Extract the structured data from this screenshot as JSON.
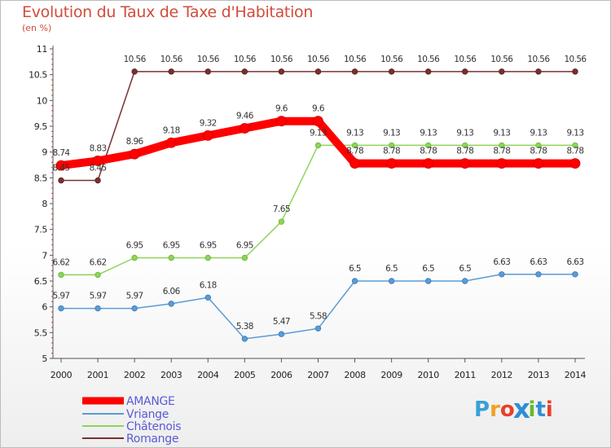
{
  "header": {
    "title": "Evolution du Taux de Taxe d'Habitation",
    "subtitle": "(en %)"
  },
  "logo": {
    "text": "Proxiti",
    "letter_colors": [
      "#3aa0d8",
      "#f0a020",
      "#e8402a",
      "#2f8fd6",
      "#68b830",
      "#2f8fd6",
      "#e8402a"
    ]
  },
  "chart_data": {
    "type": "line",
    "x": [
      2000,
      2001,
      2002,
      2003,
      2004,
      2005,
      2006,
      2007,
      2008,
      2009,
      2010,
      2011,
      2012,
      2013,
      2014
    ],
    "ylim": [
      5,
      11
    ],
    "yticks": [
      "5",
      "5.5",
      "6",
      "6.5",
      "7",
      "7.5",
      "8",
      "8.5",
      "9",
      "9.5",
      "10",
      "10.5",
      "11"
    ],
    "grid": false,
    "legend_position": "bottom-left",
    "series": [
      {
        "name": "AMANGE",
        "color": "#ff0000",
        "values": [
          8.74,
          8.83,
          8.96,
          9.18,
          9.32,
          9.46,
          9.6,
          9.6,
          8.78,
          8.78,
          8.78,
          8.78,
          8.78,
          8.78,
          8.78
        ],
        "labels": [
          "8.74",
          "8.83",
          "8.96",
          "9.18",
          "9.32",
          "9.46",
          "9.6",
          "9.6",
          "8.78",
          "8.78",
          "8.78",
          "8.78",
          "8.78",
          "8.78",
          "8.78"
        ]
      },
      {
        "name": "Vriange",
        "color": "#5b9bd5",
        "values": [
          5.97,
          5.97,
          5.97,
          6.06,
          6.18,
          5.38,
          5.47,
          5.58,
          6.5,
          6.5,
          6.5,
          6.5,
          6.63,
          6.63,
          6.63
        ],
        "labels": [
          "5.97",
          "5.97",
          "5.97",
          "6.06",
          "6.18",
          "5.38",
          "5.47",
          "5.58",
          "6.5",
          "6.5",
          "6.5",
          "6.5",
          "6.63",
          "6.63",
          "6.63"
        ]
      },
      {
        "name": "Châtenois",
        "color": "#8fd35a",
        "values": [
          6.62,
          6.62,
          6.95,
          6.95,
          6.95,
          6.95,
          7.65,
          9.13,
          9.13,
          9.13,
          9.13,
          9.13,
          9.13,
          9.13,
          9.13
        ],
        "labels": [
          "6.62",
          "6.62",
          "6.95",
          "6.95",
          "6.95",
          "6.95",
          "7.65",
          "9.13",
          "9.13",
          "9.13",
          "9.13",
          "9.13",
          "9.13",
          "9.13",
          "9.13"
        ]
      },
      {
        "name": "Romange",
        "color": "#7a3030",
        "values": [
          8.45,
          8.45,
          10.56,
          10.56,
          10.56,
          10.56,
          10.56,
          10.56,
          10.56,
          10.56,
          10.56,
          10.56,
          10.56,
          10.56,
          10.56
        ],
        "labels": [
          "8.45",
          "8.45",
          "10.56",
          "10.56",
          "10.56",
          "10.56",
          "10.56",
          "10.56",
          "10.56",
          "10.56",
          "10.56",
          "10.56",
          "10.56",
          "10.56",
          "10.56"
        ]
      }
    ]
  }
}
